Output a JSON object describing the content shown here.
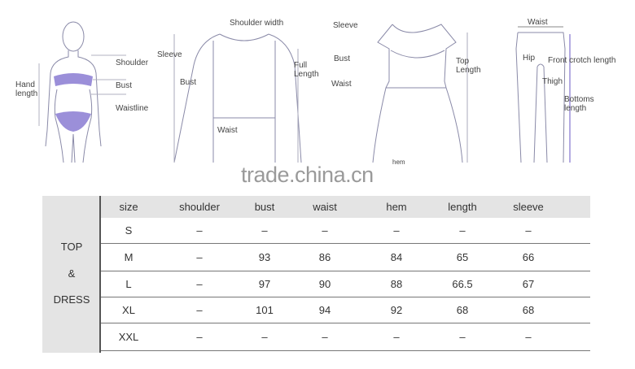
{
  "diagrams": {
    "body": {
      "shoulder": "Shoulder",
      "bust": "Bust",
      "waistline": "Waistline",
      "hand_length": "Hand length"
    },
    "long_sleeve": {
      "shoulder_width": "Shoulder width",
      "sleeve": "Sleeve",
      "bust": "Bust",
      "full_length": "Full Length",
      "waist": "Waist"
    },
    "dress": {
      "sleeve": "Sleeve",
      "bust": "Bust",
      "waist": "Waist",
      "top_length": "Top Length",
      "hem": "hem"
    },
    "pants": {
      "waist": "Waist",
      "hip": "Hip",
      "front_crotch_length": "Front crotch length",
      "thigh": "Thigh",
      "bottoms_length": "Bottoms length"
    }
  },
  "watermark": "trade.china.cn",
  "accent_color": "#9b8fd9",
  "table": {
    "group_label": [
      "TOP",
      "&",
      "DRESS"
    ],
    "headers": [
      "size",
      "shoulder",
      "bust",
      "waist",
      "hem",
      "length",
      "sleeve"
    ],
    "rows": [
      [
        "S",
        "–",
        "–",
        "–",
        "–",
        "–",
        "–"
      ],
      [
        "M",
        "–",
        "93",
        "86",
        "84",
        "65",
        "66"
      ],
      [
        "L",
        "–",
        "97",
        "90",
        "88",
        "66.5",
        "67"
      ],
      [
        "XL",
        "–",
        "101",
        "94",
        "92",
        "68",
        "68"
      ],
      [
        "XXL",
        "–",
        "–",
        "–",
        "–",
        "–",
        "–"
      ]
    ]
  }
}
